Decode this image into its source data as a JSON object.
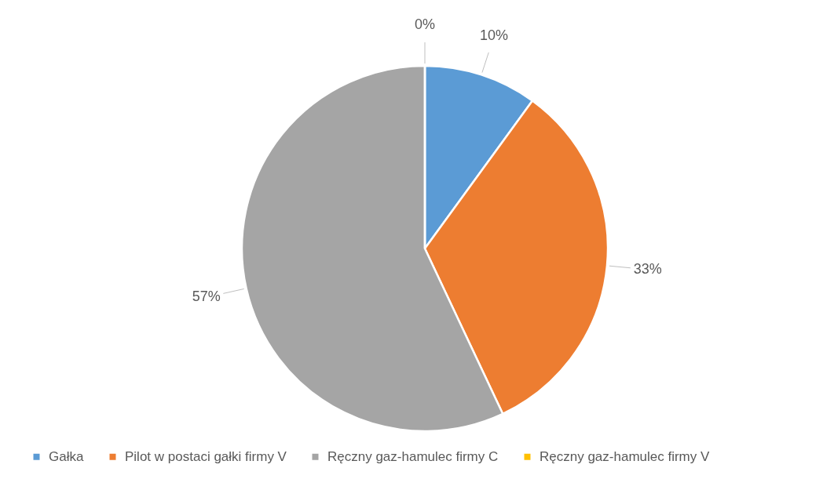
{
  "chart_data": {
    "type": "pie",
    "categories": [
      "Gałka",
      "Pilot w postaci gałki firmy V",
      "Ręczny gaz-hamulec firmy C",
      "Ręczny gaz-hamulec firmy V"
    ],
    "values": [
      10,
      33,
      57,
      0
    ],
    "colors": [
      "#5b9bd5",
      "#ed7d31",
      "#a5a5a5",
      "#ffc000"
    ],
    "value_labels": [
      "10%",
      "33%",
      "57%",
      "0%"
    ],
    "legend": "bottom"
  }
}
